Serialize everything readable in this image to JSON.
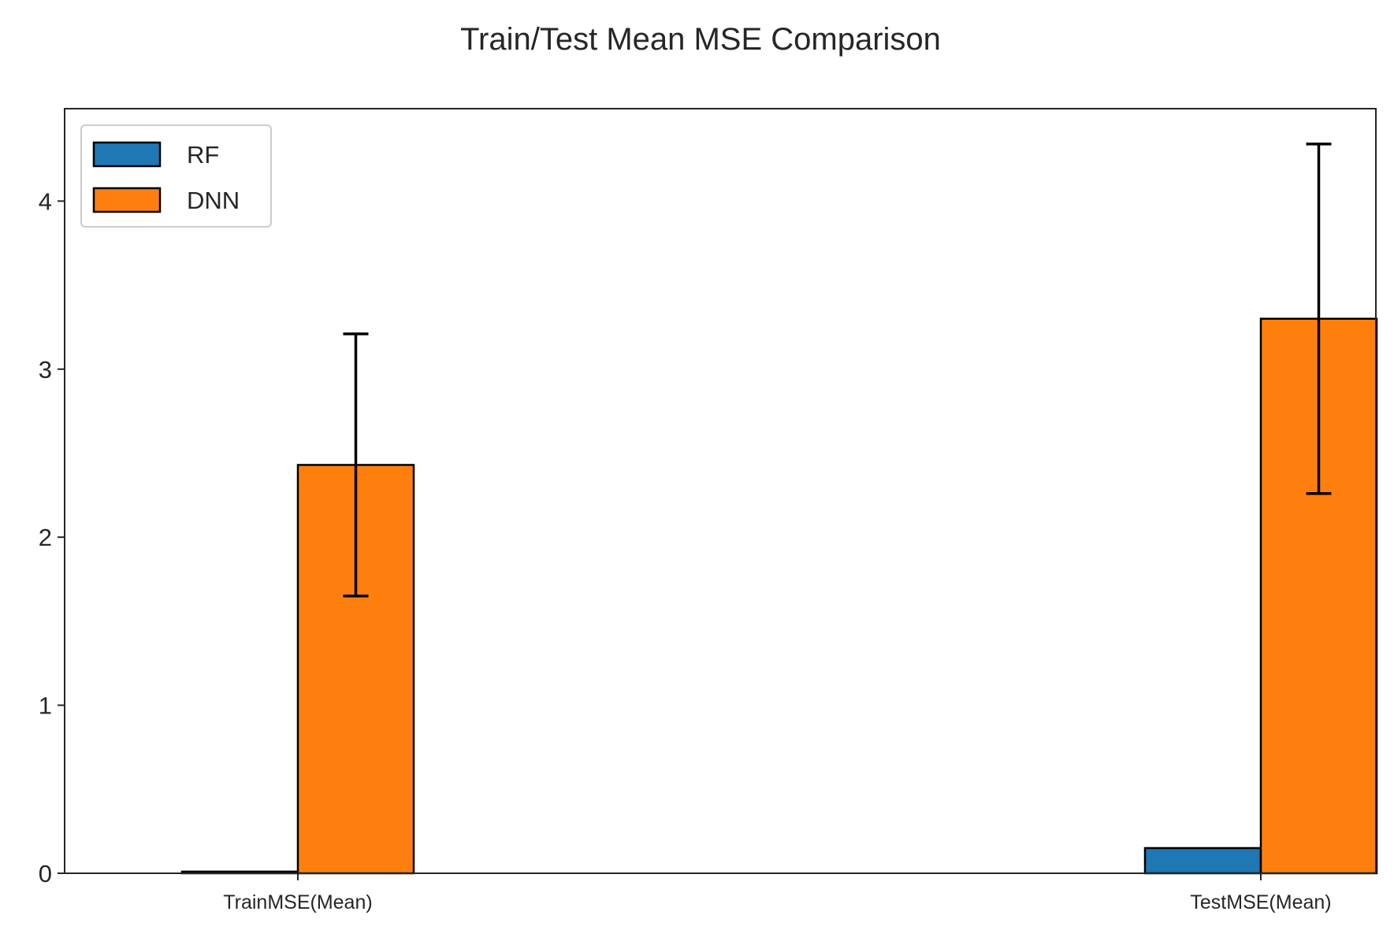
{
  "chart_data": {
    "type": "bar",
    "title": "Train/Test Mean MSE Comparison",
    "xlabel": "",
    "ylabel": "",
    "categories": [
      "TrainMSE(Mean)",
      "TestMSE(Mean)"
    ],
    "series": [
      {
        "name": "RF",
        "color": "#1f77b4",
        "values": [
          0.01,
          0.15
        ],
        "errors": [
          0.0,
          0.0
        ]
      },
      {
        "name": "DNN",
        "color": "#ff7f0e",
        "values": [
          2.43,
          3.3
        ],
        "errors": [
          0.78,
          1.04
        ]
      }
    ],
    "ylim": [
      0,
      4.55
    ],
    "yticks": [
      0,
      1,
      2,
      3,
      4
    ],
    "grid": false,
    "legend_position": "upper-left"
  }
}
